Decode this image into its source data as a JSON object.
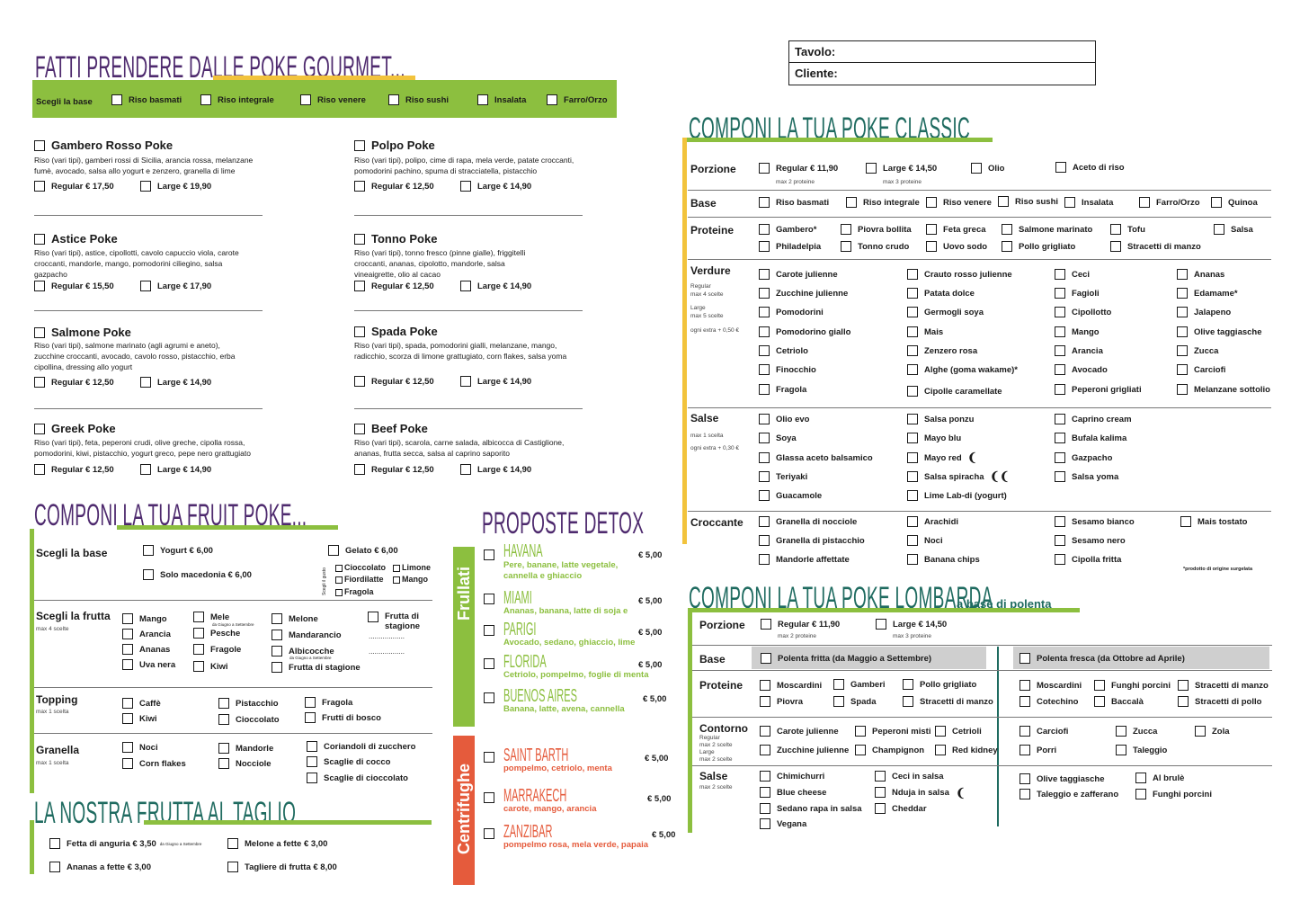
{
  "tavolo_label": "Tavolo:",
  "cliente_label": "Cliente:",
  "gourmet": {
    "title": "FATTI PRENDERE DALLE POKE GOURMET...",
    "base_label": "Scegli la base",
    "bases": [
      "Riso basmati",
      "Riso integrale",
      "Riso venere",
      "Riso sushi",
      "Insalata",
      "Farro/Orzo"
    ],
    "items": [
      {
        "name": "Gambero Rosso Poke",
        "desc": "Riso (vari tipi), gamberi rossi di Sicilia, arancia rossa, melanzane fumè, avocado, salsa allo yogurt e zenzero, granella di lime",
        "regular": "Regular € 17,50",
        "large": "Large € 19,90"
      },
      {
        "name": "Polpo Poke",
        "desc": "Riso (vari tipi), polipo, cime di rapa, mela verde, patate croccanti, pomodorini pachino, spuma di stracciatella, pistacchio",
        "regular": "Regular € 12,50",
        "large": "Large € 14,90"
      },
      {
        "name": "Astice Poke",
        "desc": "Riso (vari tipi), astice, cipollotti, cavolo capuccio viola, carote croccanti, mandorle, mango, pomodorini ciliegino, salsa gazpacho",
        "regular": "Regular € 15,50",
        "large": "Large € 17,90"
      },
      {
        "name": "Tonno Poke",
        "desc": "Riso (vari tipi), tonno fresco (pinne gialle), friggitelli croccanti, ananas, cipolotto, mandorle, salsa vineaigrette, olio al cacao",
        "regular": "Regular € 12,50",
        "large": "Large € 14,90"
      },
      {
        "name": "Salmone Poke",
        "desc": "Riso (vari tipi), salmone marinato (agli agrumi e aneto), zucchine croccanti, avocado, cavolo rosso, pistacchio, erba cipollina, dressing allo yogurt",
        "regular": "Regular € 12,50",
        "large": "Large € 14,90"
      },
      {
        "name": "Spada Poke",
        "desc": "Riso (vari tipi), spada, pomodorini gialli, melanzane, mango, radicchio, scorza di limone grattugiato, corn flakes, salsa yoma",
        "regular": "Regular € 12,50",
        "large": "Large € 14,90"
      },
      {
        "name": "Greek Poke",
        "desc": "Riso (vari tipi), feta, peperoni crudi, olive greche, cipolla rossa, pomodorini, kiwi, pistacchio, yogurt greco, pepe nero grattugiato",
        "regular": "Regular € 12,50",
        "large": "Large € 14,90"
      },
      {
        "name": "Beef Poke",
        "desc": "Riso (vari tipi), scarola, carne salada, albicocca di Castiglione, ananas, frutta secca, salsa al caprino saporito",
        "regular": "Regular € 12,50",
        "large": "Large € 14,90"
      }
    ]
  },
  "fruit": {
    "title": "COMPONI LA TUA FRUIT POKE...",
    "base_label": "Scegli la base",
    "yogurt": "Yogurt € 6,00",
    "macedonia": "Solo macedonia € 6,00",
    "gelato": "Gelato € 6,00",
    "gusto_label": "Scegli il gusto",
    "gelato_flavors": [
      "Cioccolato",
      "Limone",
      "Fiordilatte",
      "Mango",
      "Fragola"
    ],
    "frutta_label": "Scegli la frutta",
    "frutta_sub": "max 4 scelte",
    "frutta": [
      "Mango",
      "Arancia",
      "Ananas",
      "Uva nera",
      "Mele",
      "Pesche",
      "Fragole",
      "Kiwi",
      "Melone",
      "Mandarancio",
      "Albicocche",
      "Frutta di stagione",
      "Frutta di stagione"
    ],
    "season_note": "da Giugno a Settembre",
    "topping_label": "Topping",
    "topping_sub": "max 1 scelta",
    "topping": [
      "Caffè",
      "Kiwi",
      "Pistacchio",
      "Cioccolato",
      "Fragola",
      "Frutti di bosco"
    ],
    "granella_label": "Granella",
    "granella_sub": "max 1 scelta",
    "granella": [
      "Noci",
      "Corn flakes",
      "Mandorle",
      "Nocciole",
      "Coriandoli di zucchero",
      "Scaglie di cocco",
      "Scaglie di cioccolato"
    ]
  },
  "taglio": {
    "title": "LA NOSTRA FRUTTA AL TAGLIO",
    "items": [
      "Fetta di anguria € 3,50",
      "Melone a fette € 3,00",
      "Ananas a fette € 3,00",
      "Tagliere di frutta € 8,00"
    ]
  },
  "detox": {
    "title": "PROPOSTE DETOX",
    "frullati_label": "Frullati",
    "centrifughe_label": "Centrifughe",
    "frullati": [
      {
        "name": "HAVANA",
        "desc": "Pere, banane, latte vegetale, cannella e ghiaccio",
        "price": "€ 5,00"
      },
      {
        "name": "MIAMI",
        "desc": "Ananas, banana, latte di soja e",
        "price": "€ 5,00"
      },
      {
        "name": "PARIGI",
        "desc": "Avocado, sedano, ghiaccio, lime",
        "price": "€ 5,00"
      },
      {
        "name": "FLORIDA",
        "desc": "Cetriolo, pompelmo, foglie di menta",
        "price": "€ 5,00"
      },
      {
        "name": "BUENOS AIRES",
        "desc": "Banana, latte, avena, cannella",
        "price": "€ 5,00"
      }
    ],
    "centrifughe": [
      {
        "name": "SAINT BARTH",
        "desc": "pompelmo, cetriolo, menta",
        "price": "€ 5,00"
      },
      {
        "name": "MARRAKECH",
        "desc": "carote, mango, arancia",
        "price": "€ 5,00"
      },
      {
        "name": "ZANZIBAR",
        "desc": "pompelmo rosa, mela verde, papaia",
        "price": "€ 5,00"
      }
    ]
  },
  "classic": {
    "title": "COMPONI LA TUA POKE CLASSIC",
    "porzione_label": "Porzione",
    "regular": "Regular € 11,90",
    "regular_sub": "max 2 proteine",
    "large": "Large € 14,50",
    "large_sub": "max 3 proteine",
    "olio": "Olio",
    "aceto": "Aceto di riso",
    "base_label": "Base",
    "bases": [
      "Riso basmati",
      "Riso integrale",
      "Riso venere",
      "Riso sushi",
      "Insalata",
      "Farro/Orzo",
      "Quinoa"
    ],
    "proteine_label": "Proteine",
    "proteine": [
      "Gambero*",
      "Piovra bollita",
      "Feta greca",
      "Salmone marinato",
      "Tofu",
      "Salsa",
      "Philadelpia",
      "Tonno crudo",
      "Uovo sodo",
      "Pollo grigliato",
      "Stracetti di manzo"
    ],
    "verdure_label": "Verdure",
    "verdure_sub": [
      "Regular",
      "max 4 scelte",
      "Large",
      "max 5 scelte",
      "ogni extra + 0,50 €"
    ],
    "verdure": [
      [
        "Carote julienne",
        "Zucchine julienne",
        "Pomodorini",
        "Pomodorino giallo",
        "Cetriolo",
        "Finocchio",
        "Fragola"
      ],
      [
        "Crauto rosso julienne",
        "Patata dolce",
        "Germogli soya",
        "Mais",
        "Zenzero rosa",
        "Alghe (goma wakame)*",
        "Cipolle caramellate"
      ],
      [
        "Ceci",
        "Fagioli",
        "Cipollotto",
        "Mango",
        "Arancia",
        "Avocado",
        "Peperoni grigliati"
      ],
      [
        "Ananas",
        "Edamame*",
        "Jalapeno",
        "Olive taggiasche",
        "Zucca",
        "Carciofi",
        "Melanzane sottolio"
      ]
    ],
    "salse_label": "Salse",
    "salse_sub": [
      "max 1 scelta",
      "ogni extra + 0,30 €"
    ],
    "salse": [
      [
        "Olio evo",
        "Soya",
        "Glassa aceto balsamico",
        "Teriyaki",
        "Guacamole"
      ],
      [
        "Salsa ponzu",
        "Mayo blu",
        "Mayo red",
        "Salsa spiracha",
        "Lime Lab-di (yogurt)"
      ],
      [
        "Caprino cream",
        "Bufala kalima",
        "Gazpacho",
        "Salsa yoma"
      ]
    ],
    "croccante_label": "Croccante",
    "croccante": [
      [
        "Granella di nocciole",
        "Granella di pistacchio",
        "Mandorle affettate"
      ],
      [
        "Arachidi",
        "Noci",
        "Banana chips"
      ],
      [
        "Sesamo bianco",
        "Sesamo nero",
        "Cipolla fritta"
      ],
      [
        "Mais tostato"
      ]
    ],
    "note": "*prodotto di origine surgelata"
  },
  "lombarda": {
    "title": "COMPONI LA TUA POKE LOMBARDA",
    "title_suffix": "a base di polenta",
    "porzione_label": "Porzione",
    "regular": "Regular € 11,90",
    "regular_sub": "max 2 proteine",
    "large": "Large € 14,50",
    "large_sub": "max 3 proteine",
    "base_label": "Base",
    "base1": "Polenta fritta (da Maggio a Settembre)",
    "base2": "Polenta fresca (da Ottobre ad Aprile)",
    "proteine_label": "Proteine",
    "proteine1": [
      "Moscardini",
      "Gamberi",
      "Pollo grigliato",
      "Piovra",
      "Spada",
      "Stracetti di manzo"
    ],
    "proteine2": [
      "Moscardini",
      "Funghi porcini",
      "Stracetti di manzo",
      "Cotechino",
      "Baccalà",
      "Stracetti di pollo"
    ],
    "contorno_label": "Contorno",
    "contorno_sub": [
      "Regular",
      "max 2 scelte",
      "Large",
      "max 2 scelte"
    ],
    "contorno1": [
      "Carote julienne",
      "Peperoni misti",
      "Cetrioli",
      "Zucchine julienne",
      "Champignon",
      "Red kidney"
    ],
    "contorno2": [
      "Carciofi",
      "Zucca",
      "Zola",
      "Porri",
      "Taleggio"
    ],
    "salse_label": "Salse",
    "salse_sub": "max 2 scelte",
    "salse1": [
      "Chimichurri",
      "Ceci in salsa",
      "Blue cheese",
      "Nduja in salsa",
      "Sedano rapa in salsa",
      "Cheddar",
      "Vegana"
    ],
    "salse2": [
      "Olive taggiasche",
      "Al brulè",
      "Taleggio e zafferano",
      "Funghi porcini"
    ]
  },
  "colors": {
    "green": "#8cbf3f",
    "yellow": "#f2c33c",
    "purple": "#4e2a6e",
    "teal": "#1f6b60",
    "orange": "#e55b3c",
    "grey": "#cfcfcf"
  }
}
